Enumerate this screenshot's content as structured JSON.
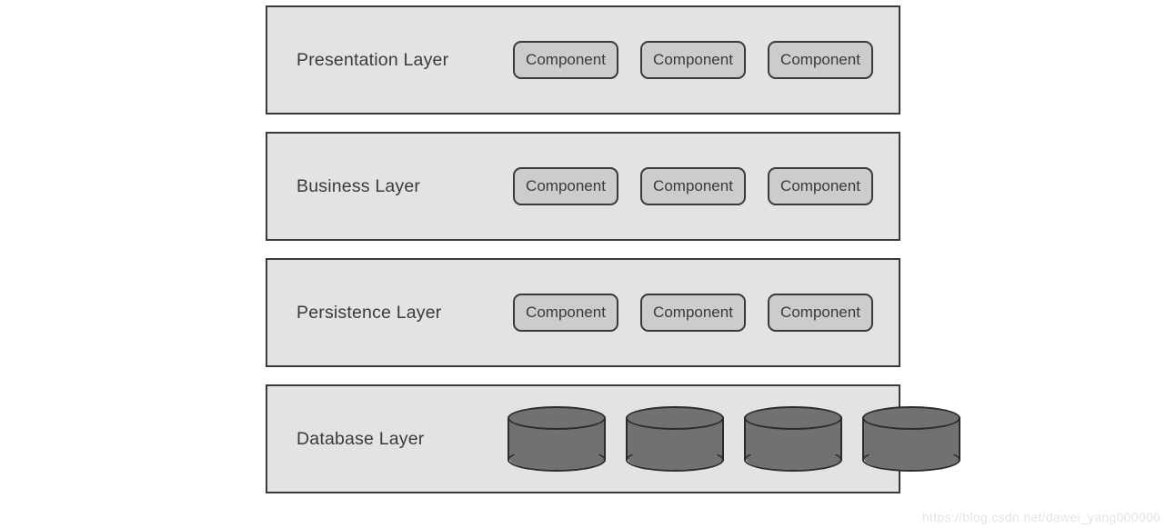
{
  "diagram": {
    "type": "layered-architecture",
    "page_background": "#ffffff",
    "layer_border_color": "#3a3a3a",
    "layer_border_width": 2.5,
    "text_color": "#3a3a3a",
    "label_fontsize": 19.5,
    "component_fontsize": 17,
    "component_border_radius": 9,
    "component_border_color": "#3a3a3a",
    "component_fill": "#cccccc",
    "layer_gap": 19,
    "layer_height": 120,
    "layers": [
      {
        "id": "presentation",
        "label": "Presentation Layer",
        "fill": "#e3e3e3",
        "kind": "components",
        "components": [
          "Component",
          "Component",
          "Component"
        ]
      },
      {
        "id": "business",
        "label": "Business Layer",
        "fill": "#e3e3e3",
        "kind": "components",
        "components": [
          "Component",
          "Component",
          "Component"
        ]
      },
      {
        "id": "persistence",
        "label": "Persistence Layer",
        "fill": "#e3e3e3",
        "kind": "components",
        "components": [
          "Component",
          "Component",
          "Component"
        ]
      },
      {
        "id": "database",
        "label": "Database Layer",
        "fill": "#e3e3e3",
        "kind": "databases",
        "db_count": 4,
        "db_fill": "#717171",
        "db_border": "#2b2b2b"
      }
    ]
  },
  "watermark": "https://blog.csdn.net/dawei_yang000000"
}
